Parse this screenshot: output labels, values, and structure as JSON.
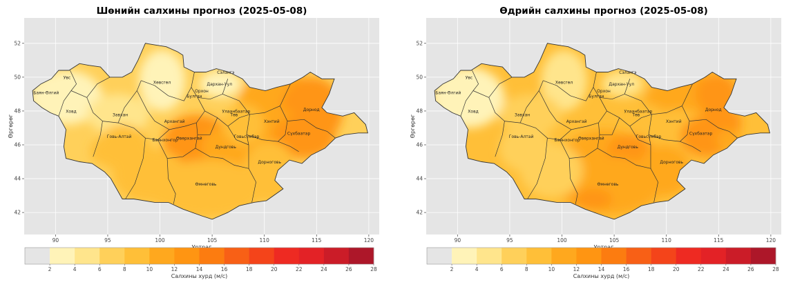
{
  "maps": [
    {
      "title": "Шөнийн салхины прогноз (2025-05-08)",
      "xlabel": "Уртраг",
      "ylabel": "Өргөрөг",
      "colorbar_label": "Салхины хурд (м/с)",
      "regions": [
        {
          "name": "Увс",
          "lon": 91.1,
          "lat": 49.9
        },
        {
          "name": "Баян-Өлгий",
          "lon": 89.1,
          "lat": 49.0
        },
        {
          "name": "Ховд",
          "lon": 91.5,
          "lat": 47.9
        },
        {
          "name": "Хөвсгөл",
          "lon": 100.2,
          "lat": 49.6
        },
        {
          "name": "Завхан",
          "lon": 96.2,
          "lat": 47.7
        },
        {
          "name": "Архангай",
          "lon": 101.4,
          "lat": 47.3
        },
        {
          "name": "Говь-Алтай",
          "lon": 96.1,
          "lat": 46.4
        },
        {
          "name": "Баянхонгор",
          "lon": 100.5,
          "lat": 46.2
        },
        {
          "name": "Өвөрхангай",
          "lon": 102.8,
          "lat": 46.3
        },
        {
          "name": "Булган",
          "lon": 103.3,
          "lat": 48.8
        },
        {
          "name": "Орхон",
          "lon": 104.0,
          "lat": 49.1
        },
        {
          "name": "Сэлэнгэ",
          "lon": 106.3,
          "lat": 50.2
        },
        {
          "name": "Дархан-Уул",
          "lon": 105.7,
          "lat": 49.5
        },
        {
          "name": "Улаанбаатар",
          "lon": 107.3,
          "lat": 47.9
        },
        {
          "name": "Төв",
          "lon": 107.1,
          "lat": 47.7
        },
        {
          "name": "Хэнтий",
          "lon": 110.7,
          "lat": 47.3
        },
        {
          "name": "Дорнод",
          "lon": 114.5,
          "lat": 48.0
        },
        {
          "name": "Сүхбаатар",
          "lon": 113.3,
          "lat": 46.6
        },
        {
          "name": "Говьсүмбэр",
          "lon": 108.3,
          "lat": 46.4
        },
        {
          "name": "Дундговь",
          "lon": 106.3,
          "lat": 45.8
        },
        {
          "name": "Дорноговь",
          "lon": 110.5,
          "lat": 44.9
        },
        {
          "name": "Өмнөговь",
          "lon": 104.4,
          "lat": 43.6
        }
      ]
    },
    {
      "title": "Өдрийн салхины прогноз (2025-05-08)",
      "xlabel": "Уртраг",
      "ylabel": "Өргөрөг",
      "colorbar_label": "Салхины хурд (м/с)",
      "regions": [
        {
          "name": "Увс",
          "lon": 91.1,
          "lat": 49.9
        },
        {
          "name": "Баян-Өлгий",
          "lon": 89.1,
          "lat": 49.0
        },
        {
          "name": "Ховд",
          "lon": 91.5,
          "lat": 47.9
        },
        {
          "name": "Хөвсгөл",
          "lon": 100.2,
          "lat": 49.6
        },
        {
          "name": "Завхан",
          "lon": 96.2,
          "lat": 47.7
        },
        {
          "name": "Архангай",
          "lon": 101.4,
          "lat": 47.3
        },
        {
          "name": "Говь-Алтай",
          "lon": 96.1,
          "lat": 46.4
        },
        {
          "name": "Баянхонгор",
          "lon": 100.5,
          "lat": 46.2
        },
        {
          "name": "Өвөрхангай",
          "lon": 102.8,
          "lat": 46.3
        },
        {
          "name": "Булган",
          "lon": 103.3,
          "lat": 48.8
        },
        {
          "name": "Орхон",
          "lon": 104.0,
          "lat": 49.1
        },
        {
          "name": "Сэлэнгэ",
          "lon": 106.3,
          "lat": 50.2
        },
        {
          "name": "Дархан-Уул",
          "lon": 105.7,
          "lat": 49.5
        },
        {
          "name": "Улаанбаатар",
          "lon": 107.3,
          "lat": 47.9
        },
        {
          "name": "Төв",
          "lon": 107.1,
          "lat": 47.7
        },
        {
          "name": "Хэнтий",
          "lon": 110.7,
          "lat": 47.3
        },
        {
          "name": "Дорнод",
          "lon": 114.5,
          "lat": 48.0
        },
        {
          "name": "Сүхбаатар",
          "lon": 113.3,
          "lat": 46.6
        },
        {
          "name": "Говьсүмбэр",
          "lon": 108.3,
          "lat": 46.4
        },
        {
          "name": "Дундговь",
          "lon": 106.3,
          "lat": 45.8
        },
        {
          "name": "Дорноговь",
          "lon": 110.5,
          "lat": 44.9
        },
        {
          "name": "Өмнөговь",
          "lon": 104.4,
          "lat": 43.6
        }
      ]
    }
  ],
  "axes": {
    "xlim": [
      87,
      121
    ],
    "ylim": [
      40.7,
      53.5
    ],
    "xticks": [
      90,
      95,
      100,
      105,
      110,
      115,
      120
    ],
    "yticks": [
      42,
      44,
      46,
      48,
      50,
      52
    ]
  },
  "colorbar": {
    "levels": [
      2,
      4,
      6,
      8,
      10,
      12,
      14,
      16,
      18,
      20,
      22,
      24,
      26,
      28
    ],
    "colors": [
      "#fff3b8",
      "#ffe58c",
      "#ffd05a",
      "#ffbf38",
      "#ffa81e",
      "#ff9512",
      "#fc7c10",
      "#f86016",
      "#f4441a",
      "#ee2a22",
      "#e32226",
      "#cb1c28",
      "#ad1729"
    ],
    "under_color": "#e5e5e5"
  }
}
